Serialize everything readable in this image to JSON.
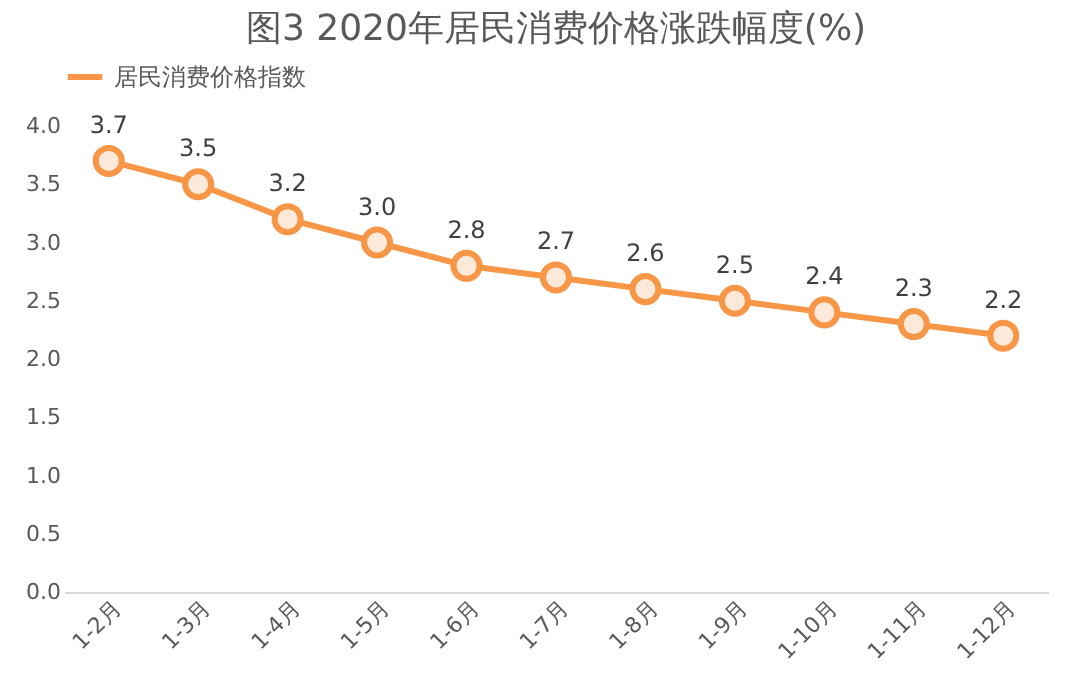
{
  "chart_data": {
    "type": "line",
    "title": "图3 2020年居民消费价格涨跌幅度(%)",
    "categories": [
      "1-2月",
      "1-3月",
      "1-4月",
      "1-5月",
      "1-6月",
      "1-7月",
      "1-8月",
      "1-9月",
      "1-10月",
      "1-11月",
      "1-12月"
    ],
    "series": [
      {
        "name": "居民消费价格指数",
        "color": "#f79646",
        "values": [
          3.7,
          3.5,
          3.2,
          3.0,
          2.8,
          2.7,
          2.6,
          2.5,
          2.4,
          2.3,
          2.2
        ],
        "value_labels": [
          "3.7",
          "3.5",
          "3.2",
          "3.0",
          "2.8",
          "2.7",
          "2.6",
          "2.5",
          "2.4",
          "2.3",
          "2.2"
        ]
      }
    ],
    "ylim": [
      0,
      4
    ],
    "yticks": [
      {
        "value": 0,
        "label": "0.0"
      },
      {
        "value": 0.5,
        "label": "0.5"
      },
      {
        "value": 1,
        "label": "1.0"
      },
      {
        "value": 1.5,
        "label": "1.5"
      },
      {
        "value": 2,
        "label": "2.0"
      },
      {
        "value": 2.5,
        "label": "2.5"
      },
      {
        "value": 3,
        "label": "3.0"
      },
      {
        "value": 3.5,
        "label": "3.5"
      },
      {
        "value": 4,
        "label": "4.0"
      }
    ],
    "grid": false,
    "legend": "top",
    "marker": "circle",
    "line_style": "solid"
  }
}
